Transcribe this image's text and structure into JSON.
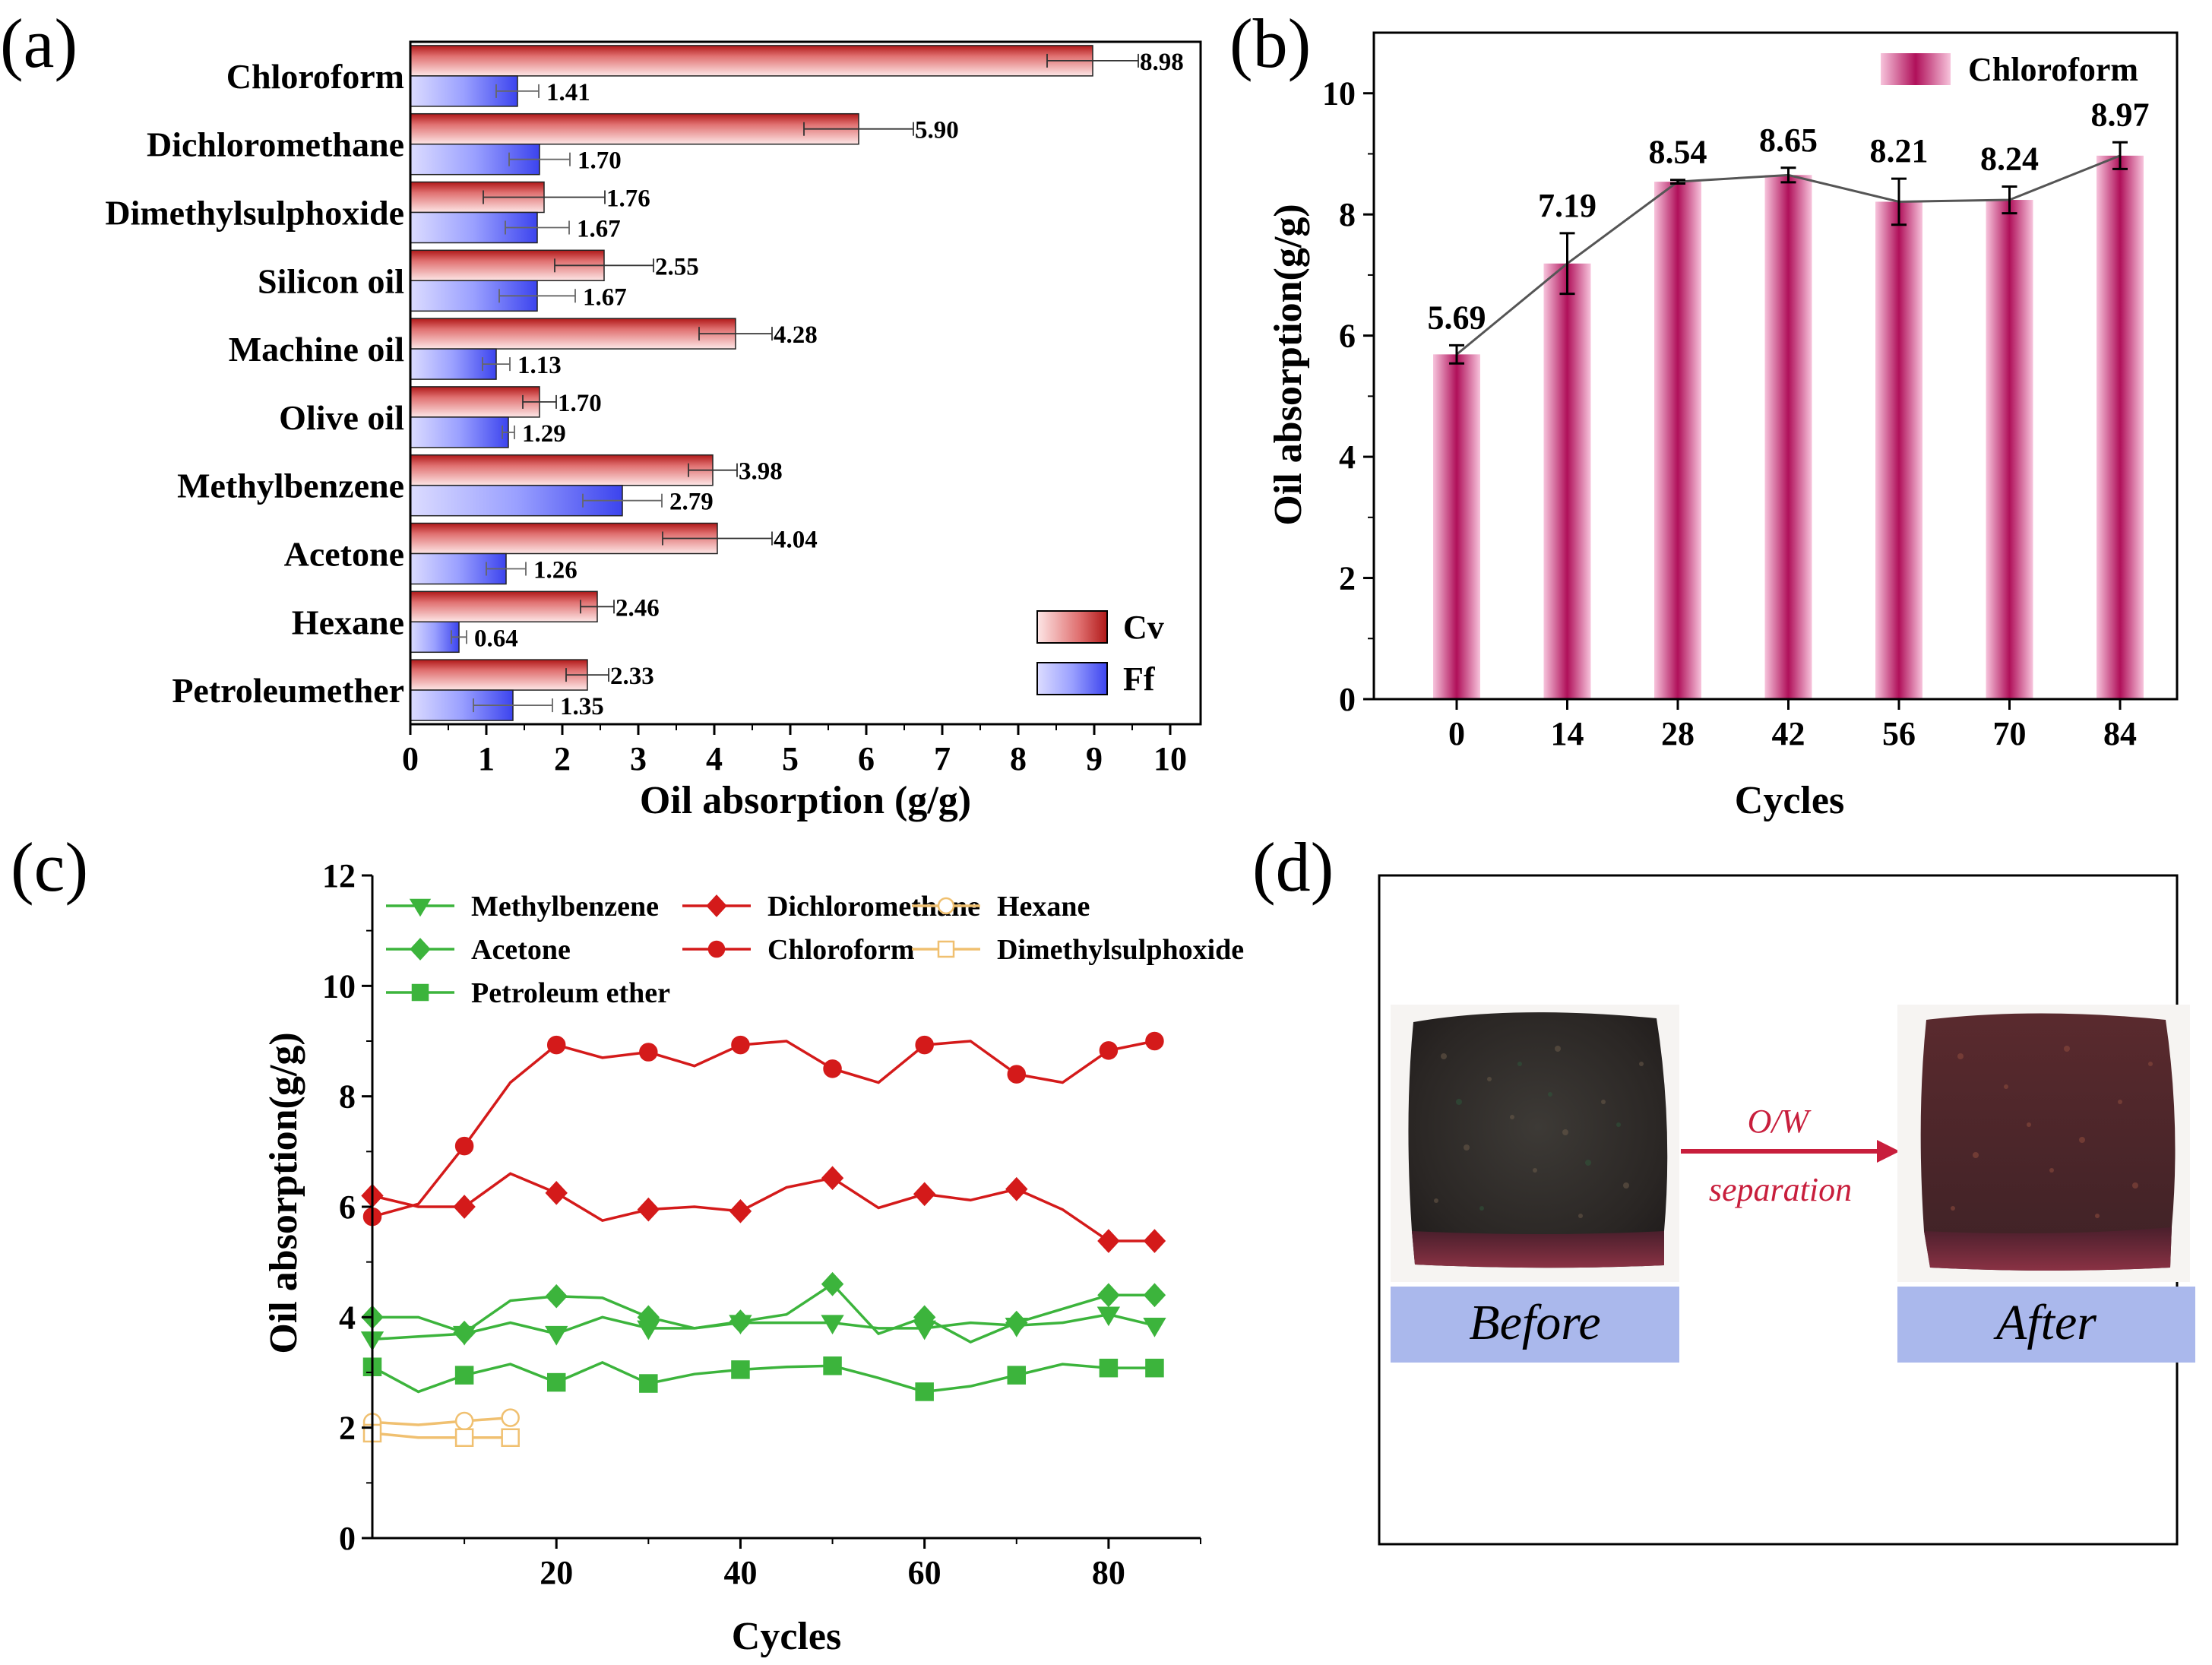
{
  "figure": {
    "panel_letters": [
      "(a)",
      "(b)",
      "(c)",
      "(d)"
    ]
  },
  "chart_data": [
    {
      "panel": "(a)",
      "type": "bar",
      "orientation": "horizontal",
      "categories": [
        "Chloroform",
        "Dichloromethane",
        "Dimethylsulphoxide",
        "Silicon oil",
        "Machine oil",
        "Olive oil",
        "Methylbenzene",
        "Acetone",
        "Hexane",
        "Petroleumether"
      ],
      "series": [
        {
          "name": "Cv",
          "color": "#d44a4a",
          "values": [
            8.98,
            5.9,
            1.76,
            2.55,
            4.28,
            1.7,
            3.98,
            4.04,
            2.46,
            2.33
          ],
          "errors": [
            0.6,
            0.72,
            0.8,
            0.65,
            0.48,
            0.22,
            0.32,
            0.72,
            0.22,
            0.28
          ],
          "labels": [
            "8.98",
            "5.90",
            "1.76",
            "2.55",
            "4.28",
            "1.70",
            "3.98",
            "4.04",
            "2.46",
            "2.33"
          ]
        },
        {
          "name": "Ff",
          "color": "#4a4ee6",
          "values": [
            1.41,
            1.7,
            1.67,
            1.67,
            1.13,
            1.29,
            2.79,
            1.26,
            0.64,
            1.35
          ],
          "errors": [
            0.28,
            0.4,
            0.42,
            0.5,
            0.18,
            0.08,
            0.52,
            0.26,
            0.1,
            0.52
          ],
          "labels": [
            "1.41",
            "1.70",
            "1.67",
            "1.67",
            "1.13",
            "1.29",
            "2.79",
            "1.26",
            "0.64",
            "1.35"
          ]
        }
      ],
      "xlabel": "Oil absorption (g/g)",
      "xlim": [
        0,
        10.4
      ],
      "xticks": [
        "0",
        "1",
        "2",
        "3",
        "4",
        "5",
        "6",
        "7",
        "8",
        "9",
        "10"
      ],
      "legend_position": "bottom-right"
    },
    {
      "panel": "(b)",
      "type": "bar",
      "categories": [
        "0",
        "14",
        "28",
        "42",
        "56",
        "70",
        "84"
      ],
      "series": [
        {
          "name": "Chloroform",
          "color": "#c2185b",
          "values": [
            5.69,
            7.19,
            8.54,
            8.65,
            8.21,
            8.24,
            8.97
          ],
          "errors": [
            0.15,
            0.5,
            0.03,
            0.12,
            0.38,
            0.22,
            0.22
          ],
          "labels": [
            "5.69",
            "7.19",
            "8.54",
            "8.65",
            "8.21",
            "8.24",
            "8.97"
          ]
        }
      ],
      "xlabel": "Cycles",
      "ylabel": "Oil absorption(g/g)",
      "ylim": [
        0,
        11
      ],
      "yticks": [
        "0",
        "2",
        "4",
        "6",
        "8",
        "10"
      ],
      "connecting_line": true,
      "legend_position": "top-right"
    },
    {
      "panel": "(c)",
      "type": "line",
      "xlabel": "Cycles",
      "ylabel": "Oil absorption(g/g)",
      "xlim": [
        0,
        90
      ],
      "ylim": [
        0,
        12
      ],
      "xticks": [
        "20",
        "40",
        "60",
        "80"
      ],
      "yticks": [
        "0",
        "2",
        "4",
        "6",
        "8",
        "10",
        "12"
      ],
      "legend_position": "top",
      "legend_order": [
        "Methylbenzene",
        "Dichloromethane",
        "Hexane",
        "Acetone",
        "Chloroform",
        "Dimethylsulphoxide",
        "Petroleum ether"
      ],
      "series": [
        {
          "name": "Methylbenzene",
          "color": "#3cb43c",
          "marker": "triangle-down",
          "filled": true,
          "x": [
            0,
            5,
            10,
            15,
            20,
            25,
            30,
            35,
            40,
            45,
            50,
            55,
            60,
            65,
            70,
            75,
            80,
            85
          ],
          "y": [
            3.6,
            3.65,
            3.7,
            3.9,
            3.7,
            4.0,
            3.8,
            3.8,
            3.9,
            3.9,
            3.9,
            3.8,
            3.8,
            3.9,
            3.85,
            3.9,
            4.05,
            3.85
          ],
          "markers_at": [
            0,
            10,
            20,
            30,
            40,
            50,
            60,
            70,
            80,
            85
          ]
        },
        {
          "name": "Dichloromethane",
          "color": "#d41a1a",
          "marker": "diamond",
          "filled": true,
          "x": [
            0,
            5,
            10,
            15,
            20,
            25,
            30,
            35,
            40,
            45,
            50,
            55,
            60,
            65,
            70,
            75,
            80,
            85
          ],
          "y": [
            6.2,
            6.0,
            6.0,
            6.6,
            6.25,
            5.75,
            5.95,
            6.0,
            5.92,
            6.35,
            6.52,
            5.98,
            6.23,
            6.12,
            6.32,
            5.95,
            5.38,
            5.38
          ],
          "markers_at": [
            0,
            10,
            20,
            30,
            40,
            50,
            60,
            70,
            80,
            85
          ]
        },
        {
          "name": "Hexane",
          "color": "#f0c070",
          "marker": "circle",
          "filled": false,
          "x": [
            0,
            5,
            10,
            15
          ],
          "y": [
            2.1,
            2.05,
            2.12,
            2.18
          ],
          "markers_at": [
            0,
            10,
            15
          ]
        },
        {
          "name": "Acetone",
          "color": "#3cb43c",
          "marker": "diamond",
          "filled": true,
          "x": [
            0,
            5,
            10,
            15,
            20,
            25,
            30,
            35,
            40,
            45,
            50,
            55,
            60,
            65,
            70,
            75,
            80,
            85
          ],
          "y": [
            4.0,
            4.0,
            3.72,
            4.3,
            4.38,
            4.35,
            4.0,
            3.8,
            3.92,
            4.05,
            4.6,
            3.7,
            4.0,
            3.55,
            3.9,
            4.15,
            4.4,
            4.4
          ],
          "markers_at": [
            0,
            10,
            20,
            30,
            40,
            50,
            60,
            70,
            80,
            85
          ]
        },
        {
          "name": "Chloroform",
          "color": "#d41a1a",
          "marker": "circle",
          "filled": true,
          "x": [
            0,
            5,
            10,
            15,
            20,
            25,
            30,
            35,
            40,
            45,
            50,
            55,
            60,
            65,
            70,
            75,
            80,
            85
          ],
          "y": [
            5.82,
            6.05,
            7.1,
            8.25,
            8.93,
            8.7,
            8.8,
            8.55,
            8.93,
            9.0,
            8.5,
            8.25,
            8.93,
            9.0,
            8.4,
            8.25,
            8.83,
            9.0
          ],
          "markers_at": [
            0,
            10,
            20,
            30,
            40,
            50,
            60,
            70,
            80,
            85
          ]
        },
        {
          "name": "Dimethylsulphoxide",
          "color": "#f0c070",
          "marker": "square",
          "filled": false,
          "x": [
            0,
            5,
            10,
            15
          ],
          "y": [
            1.9,
            1.82,
            1.82,
            1.82
          ],
          "markers_at": [
            0,
            10,
            15
          ]
        },
        {
          "name": "Petroleum ether",
          "color": "#3cb43c",
          "marker": "square",
          "filled": true,
          "x": [
            0,
            5,
            10,
            15,
            20,
            25,
            30,
            35,
            40,
            45,
            50,
            55,
            60,
            65,
            70,
            75,
            80,
            85
          ],
          "y": [
            3.1,
            2.65,
            2.95,
            3.15,
            2.82,
            3.18,
            2.8,
            2.97,
            3.05,
            3.1,
            3.12,
            2.9,
            2.65,
            2.75,
            2.95,
            3.15,
            3.08,
            3.08
          ],
          "markers_at": [
            0,
            10,
            20,
            30,
            40,
            50,
            60,
            70,
            80,
            85
          ]
        }
      ]
    }
  ],
  "photo_panel": {
    "panel": "(d)",
    "arrow_top_text": "O/W",
    "arrow_bottom_text": "separation",
    "before_label": "Before",
    "after_label": "After",
    "colors": {
      "arrow": "#c81e3c",
      "caption_bg": "#aab8ec",
      "sponge_dark": "#2a2628",
      "sponge_red": "#7a2838"
    }
  }
}
